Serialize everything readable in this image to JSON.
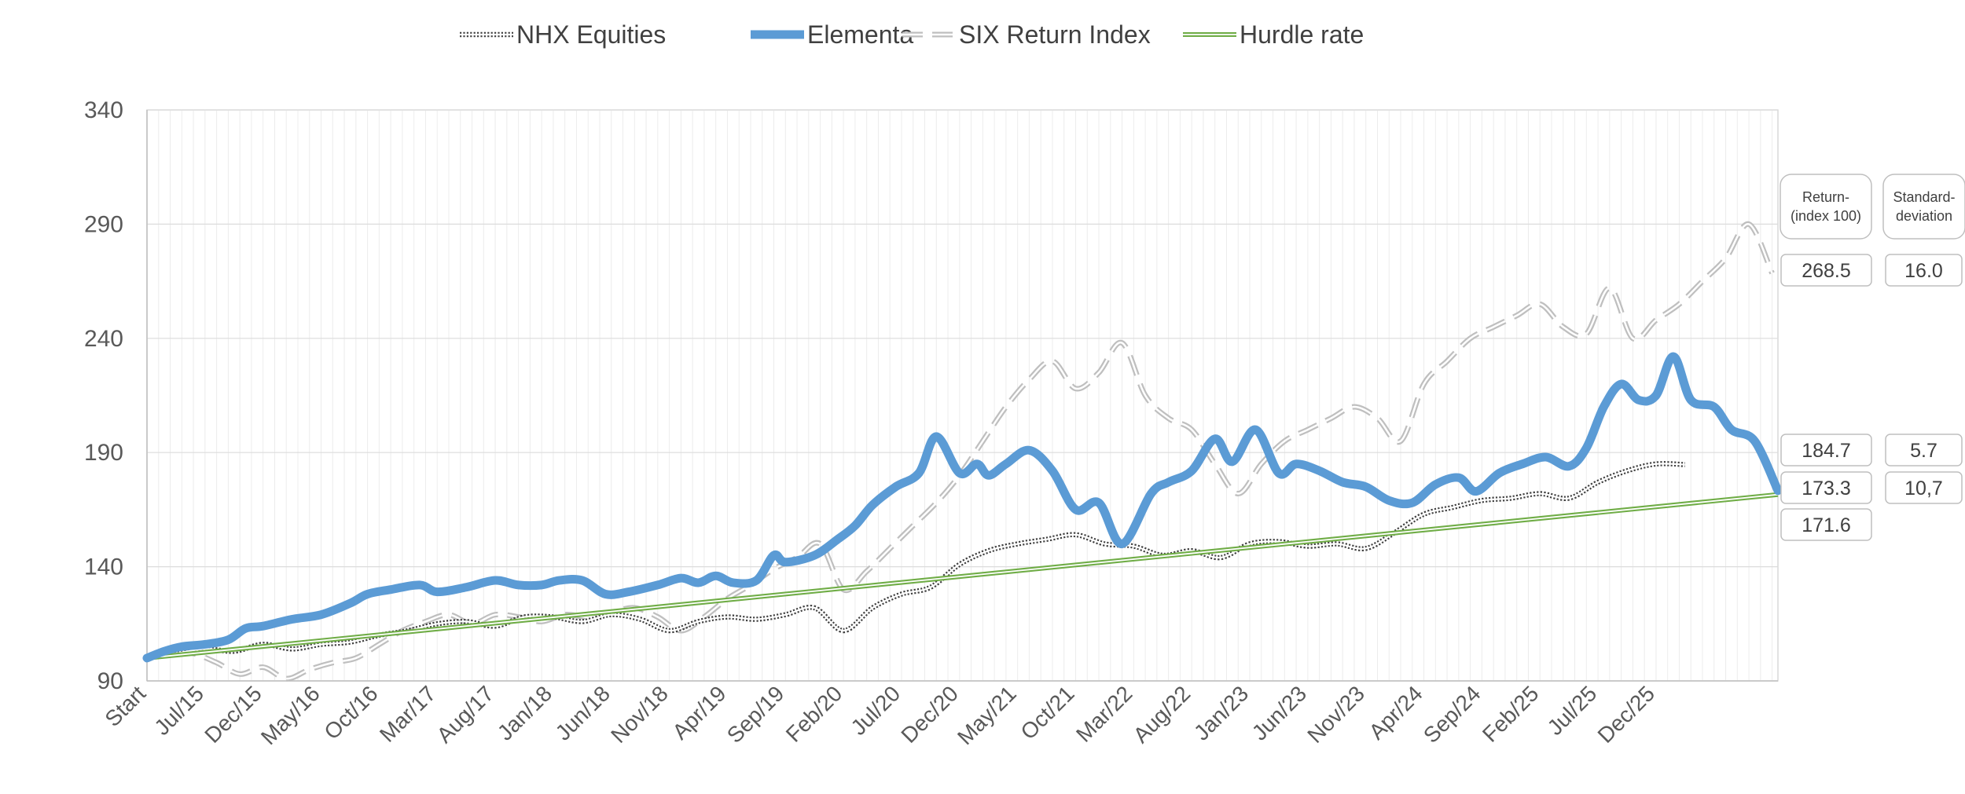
{
  "chart_data": {
    "type": "line",
    "ylim": [
      90,
      340
    ],
    "yticks": [
      90,
      140,
      190,
      240,
      290,
      340
    ],
    "grid": true,
    "legend_position": "top",
    "categories": [
      "Start",
      "Jul/15",
      "Dec/15",
      "May/16",
      "Oct/16",
      "Mar/17",
      "Aug/17",
      "Jan/18",
      "Jun/18",
      "Nov/18",
      "Apr/19",
      "Sep/19",
      "Feb/20",
      "Jul/20",
      "Dec/20",
      "May/21",
      "Oct/21",
      "Mar/22",
      "Aug/22",
      "Jan/23",
      "Jun/23",
      "Nov/23",
      "Apr/24",
      "Sep/24",
      "Feb/25",
      "Jul/25",
      "Dec/25"
    ],
    "series": [
      {
        "name": "NHX Equities",
        "color": "#404040",
        "style": "dotted-double",
        "points": [
          [
            0,
            100
          ],
          [
            0.5,
            102
          ],
          [
            1,
            104
          ],
          [
            1.5,
            103
          ],
          [
            2,
            106
          ],
          [
            2.5,
            104
          ],
          [
            3,
            106
          ],
          [
            3.5,
            107
          ],
          [
            4,
            110
          ],
          [
            4.5,
            112
          ],
          [
            5,
            115
          ],
          [
            5.5,
            116
          ],
          [
            6,
            114
          ],
          [
            6.5,
            118
          ],
          [
            7,
            118
          ],
          [
            7.5,
            116
          ],
          [
            8,
            119
          ],
          [
            8.5,
            117
          ],
          [
            9,
            112
          ],
          [
            9.5,
            116
          ],
          [
            10,
            118
          ],
          [
            10.5,
            117
          ],
          [
            11,
            119
          ],
          [
            11.5,
            122
          ],
          [
            12,
            112
          ],
          [
            12.5,
            122
          ],
          [
            13,
            128
          ],
          [
            13.5,
            131
          ],
          [
            14,
            141
          ],
          [
            14.5,
            147
          ],
          [
            15,
            150
          ],
          [
            15.5,
            152
          ],
          [
            16,
            154
          ],
          [
            16.5,
            150
          ],
          [
            17,
            149
          ],
          [
            17.5,
            145
          ],
          [
            18,
            147
          ],
          [
            18.5,
            144
          ],
          [
            19,
            150
          ],
          [
            19.5,
            151
          ],
          [
            20,
            149
          ],
          [
            20.5,
            150
          ],
          [
            21,
            148
          ],
          [
            21.5,
            155
          ],
          [
            22,
            163
          ],
          [
            22.5,
            166
          ],
          [
            23,
            169
          ],
          [
            23.5,
            170
          ],
          [
            24,
            172
          ],
          [
            24.5,
            170
          ],
          [
            25,
            177
          ],
          [
            25.5,
            182
          ],
          [
            26,
            185
          ],
          [
            26.5,
            184.7
          ]
        ]
      },
      {
        "name": "Elementa",
        "color": "#5B9BD5",
        "style": "solid-thick",
        "points": [
          [
            0,
            100
          ],
          [
            0.3,
            103
          ],
          [
            0.6,
            105
          ],
          [
            1,
            106
          ],
          [
            1.4,
            108
          ],
          [
            1.7,
            113
          ],
          [
            2,
            114
          ],
          [
            2.5,
            117
          ],
          [
            3,
            119
          ],
          [
            3.5,
            124
          ],
          [
            3.8,
            128
          ],
          [
            4.2,
            130
          ],
          [
            4.7,
            132
          ],
          [
            5,
            129
          ],
          [
            5.5,
            131
          ],
          [
            6,
            134
          ],
          [
            6.4,
            132
          ],
          [
            6.8,
            132
          ],
          [
            7.1,
            134
          ],
          [
            7.5,
            134
          ],
          [
            7.9,
            128
          ],
          [
            8.3,
            129
          ],
          [
            8.8,
            132
          ],
          [
            9.2,
            135
          ],
          [
            9.5,
            133
          ],
          [
            9.8,
            136
          ],
          [
            10.1,
            133
          ],
          [
            10.5,
            134
          ],
          [
            10.8,
            145
          ],
          [
            11,
            142
          ],
          [
            11.5,
            145
          ],
          [
            11.9,
            152
          ],
          [
            12.2,
            158
          ],
          [
            12.5,
            167
          ],
          [
            12.9,
            175
          ],
          [
            13.3,
            181
          ],
          [
            13.6,
            197
          ],
          [
            14,
            181
          ],
          [
            14.3,
            185
          ],
          [
            14.5,
            180
          ],
          [
            14.8,
            185
          ],
          [
            15.2,
            191
          ],
          [
            15.6,
            182
          ],
          [
            16,
            165
          ],
          [
            16.4,
            168
          ],
          [
            16.8,
            150
          ],
          [
            17.3,
            172
          ],
          [
            17.6,
            177
          ],
          [
            18,
            182
          ],
          [
            18.4,
            196
          ],
          [
            18.7,
            186
          ],
          [
            19.1,
            200
          ],
          [
            19.5,
            181
          ],
          [
            19.8,
            185
          ],
          [
            20.2,
            182
          ],
          [
            20.6,
            177
          ],
          [
            21,
            175
          ],
          [
            21.4,
            169
          ],
          [
            21.8,
            168
          ],
          [
            22.2,
            176
          ],
          [
            22.6,
            179
          ],
          [
            22.9,
            173
          ],
          [
            23.3,
            181
          ],
          [
            23.7,
            185
          ],
          [
            24.1,
            188
          ],
          [
            24.5,
            184
          ],
          [
            24.8,
            192
          ],
          [
            25.1,
            210
          ],
          [
            25.4,
            220
          ],
          [
            25.7,
            213
          ],
          [
            26,
            215
          ],
          [
            26.3,
            232
          ],
          [
            26.6,
            213
          ],
          [
            27,
            210
          ],
          [
            27.3,
            200
          ],
          [
            27.7,
            195
          ],
          [
            28.1,
            173.3
          ]
        ]
      },
      {
        "name": "SIX Return Index",
        "color": "#BFBFBF",
        "style": "dashed-double",
        "points": [
          [
            0,
            100
          ],
          [
            0.4,
            103
          ],
          [
            0.8,
            102
          ],
          [
            1.2,
            98
          ],
          [
            1.6,
            93
          ],
          [
            2,
            96
          ],
          [
            2.4,
            91
          ],
          [
            2.8,
            95
          ],
          [
            3.2,
            98
          ],
          [
            3.6,
            100
          ],
          [
            4,
            106
          ],
          [
            4.4,
            112
          ],
          [
            4.8,
            116
          ],
          [
            5.2,
            119
          ],
          [
            5.6,
            115
          ],
          [
            6,
            119
          ],
          [
            6.4,
            118
          ],
          [
            6.8,
            116
          ],
          [
            7.2,
            119
          ],
          [
            7.6,
            118
          ],
          [
            8,
            120
          ],
          [
            8.4,
            122
          ],
          [
            8.8,
            118
          ],
          [
            9.2,
            112
          ],
          [
            9.6,
            118
          ],
          [
            10,
            126
          ],
          [
            10.4,
            132
          ],
          [
            10.8,
            139
          ],
          [
            11.2,
            144
          ],
          [
            11.6,
            150
          ],
          [
            12,
            130
          ],
          [
            12.4,
            138
          ],
          [
            12.8,
            148
          ],
          [
            13.2,
            158
          ],
          [
            13.6,
            168
          ],
          [
            14,
            180
          ],
          [
            14.4,
            195
          ],
          [
            14.8,
            210
          ],
          [
            15.2,
            222
          ],
          [
            15.6,
            230
          ],
          [
            16,
            218
          ],
          [
            16.4,
            225
          ],
          [
            16.8,
            238
          ],
          [
            17.2,
            215
          ],
          [
            17.6,
            205
          ],
          [
            18,
            200
          ],
          [
            18.4,
            185
          ],
          [
            18.8,
            172
          ],
          [
            19.2,
            185
          ],
          [
            19.6,
            195
          ],
          [
            20,
            200
          ],
          [
            20.4,
            205
          ],
          [
            20.8,
            210
          ],
          [
            21.2,
            205
          ],
          [
            21.6,
            195
          ],
          [
            22,
            220
          ],
          [
            22.4,
            230
          ],
          [
            22.8,
            240
          ],
          [
            23.2,
            245
          ],
          [
            23.6,
            250
          ],
          [
            24,
            255
          ],
          [
            24.4,
            245
          ],
          [
            24.8,
            242
          ],
          [
            25.2,
            262
          ],
          [
            25.6,
            240
          ],
          [
            26,
            248
          ],
          [
            26.4,
            255
          ],
          [
            26.8,
            265
          ],
          [
            27.2,
            275
          ],
          [
            27.6,
            290
          ],
          [
            28,
            268.5
          ]
        ]
      },
      {
        "name": "Hurdle rate",
        "color": "#70AD47",
        "style": "solid-double",
        "points": [
          [
            0,
            100
          ],
          [
            28.1,
            171.6
          ]
        ]
      }
    ],
    "end_labels": {
      "header_return": "Return-\n(index 100)",
      "header_std": "Standard-\ndeviation",
      "returns": [
        "268.5",
        "184.7",
        "173.3",
        "171.6"
      ],
      "stds": [
        "16.0",
        "5.7",
        "10,7"
      ]
    }
  }
}
